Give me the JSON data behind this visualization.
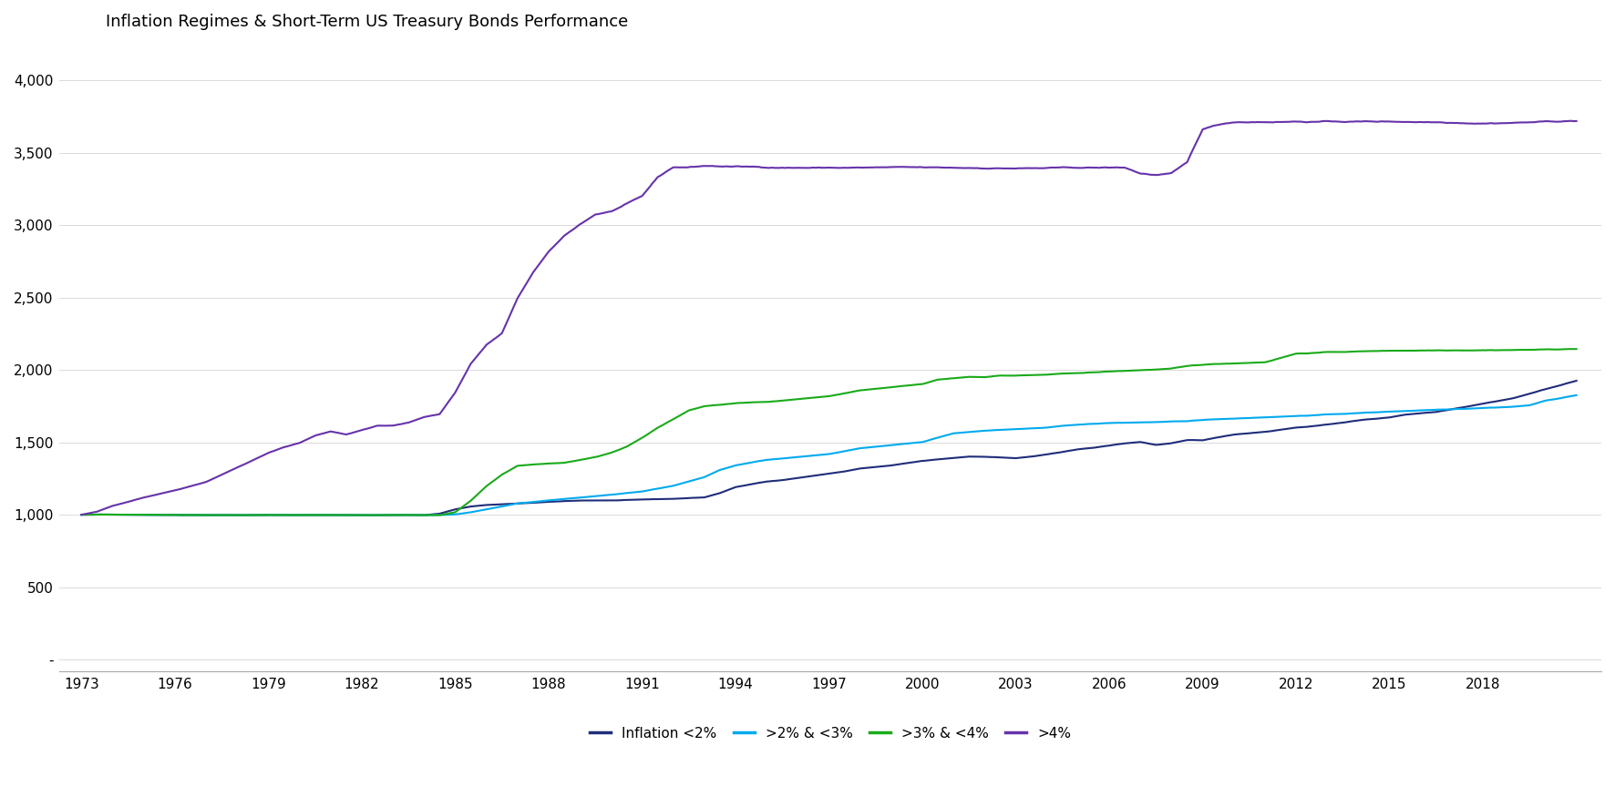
{
  "title": "Inflation Regimes & Short-Term US Treasury Bonds Performance",
  "colors": {
    "below2": "#1f2d7a",
    "2to3": "#00aaee",
    "3to4": "#1aaa1a",
    "above4": "#6633aa"
  },
  "legend_labels": [
    "Inflation <2%",
    ">2% & <3%",
    ">3% & <4%",
    ">4%"
  ],
  "x_ticks": [
    1973,
    1976,
    1979,
    1982,
    1985,
    1988,
    1991,
    1994,
    1997,
    2000,
    2003,
    2006,
    2009,
    2012,
    2015,
    2018
  ],
  "ylim": [
    -80,
    4250
  ],
  "xlim": [
    1972.3,
    2021.8
  ],
  "y_ticks": [
    0,
    500,
    1000,
    1500,
    2000,
    2500,
    3000,
    3500,
    4000
  ],
  "y_tick_labels": [
    "-",
    "500",
    "1,000",
    "1,500",
    "2,000",
    "2,500",
    "3,000",
    "3,500",
    "4,000"
  ],
  "background_color": "#ffffff",
  "line_width": 1.5
}
